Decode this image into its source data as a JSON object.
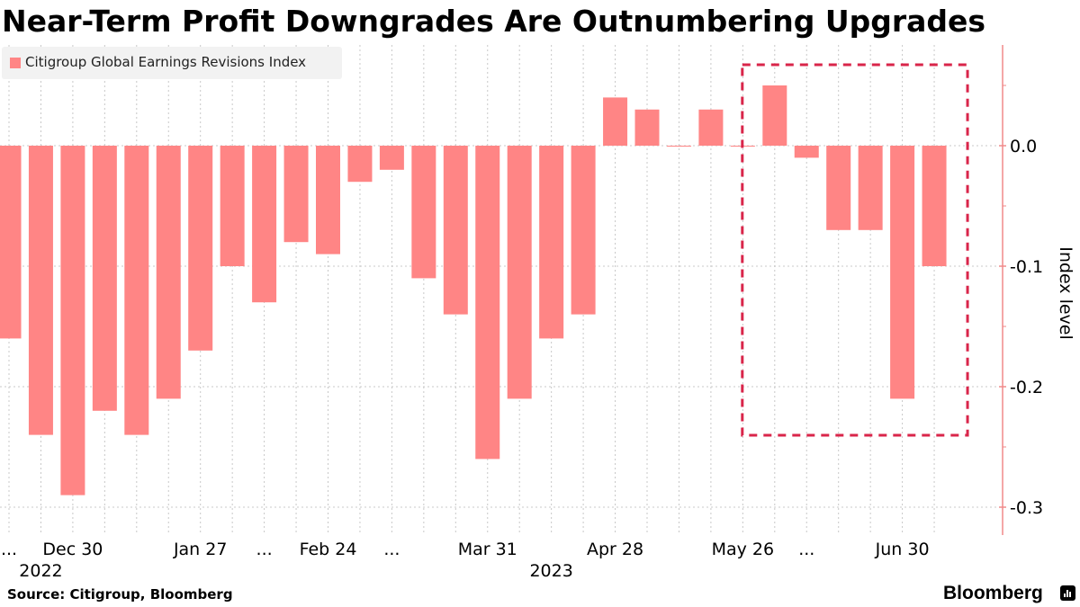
{
  "title": "Near-Term Profit Downgrades Are Outnumbering Upgrades",
  "legend": {
    "label": "Citigroup Global Earnings Revisions Index",
    "color": "#ff8585"
  },
  "source": "Source: Citigroup, Bloomberg",
  "brand": "Bloomberg",
  "annotation": {
    "type": "dashed-box",
    "color": "#d9254a",
    "covers_bar_indices": [
      24,
      29
    ]
  },
  "chart_data": {
    "type": "bar",
    "title": "Near-Term Profit Downgrades Are Outnumbering Upgrades",
    "xlabel": "",
    "ylabel": "Index level",
    "ylim": [
      -0.32,
      0.08
    ],
    "yticks": [
      0.0,
      -0.1,
      -0.2,
      -0.3
    ],
    "ytick_labels": [
      "0.0",
      "-0.1",
      "-0.2",
      "-0.3"
    ],
    "grid": true,
    "legend_position": "top-left",
    "series": [
      {
        "name": "Citigroup Global Earnings Revisions Index",
        "values": [
          -0.16,
          -0.24,
          -0.29,
          -0.22,
          -0.24,
          -0.21,
          -0.17,
          -0.1,
          -0.13,
          -0.08,
          -0.09,
          -0.03,
          -0.02,
          -0.11,
          -0.14,
          -0.26,
          -0.21,
          -0.16,
          -0.14,
          0.04,
          0.03,
          0.0,
          0.03,
          0.0,
          0.05,
          -0.01,
          -0.07,
          -0.07,
          -0.21,
          -0.1
        ]
      }
    ],
    "x_tick_labels": [
      {
        "bar_index": 0,
        "label": "..."
      },
      {
        "bar_index": 2,
        "label": "Dec 30"
      },
      {
        "bar_index": 6,
        "label": "Jan 27"
      },
      {
        "bar_index": 8,
        "label": "..."
      },
      {
        "bar_index": 10,
        "label": "Feb 24"
      },
      {
        "bar_index": 12,
        "label": "..."
      },
      {
        "bar_index": 15,
        "label": "Mar 31"
      },
      {
        "bar_index": 19,
        "label": "Apr 28"
      },
      {
        "bar_index": 23,
        "label": "May 26"
      },
      {
        "bar_index": 25,
        "label": "..."
      },
      {
        "bar_index": 28,
        "label": "Jun 30"
      }
    ],
    "year_labels": [
      {
        "bar_index": 1,
        "label": "2022"
      },
      {
        "bar_index": 17,
        "label": "2023"
      }
    ]
  }
}
